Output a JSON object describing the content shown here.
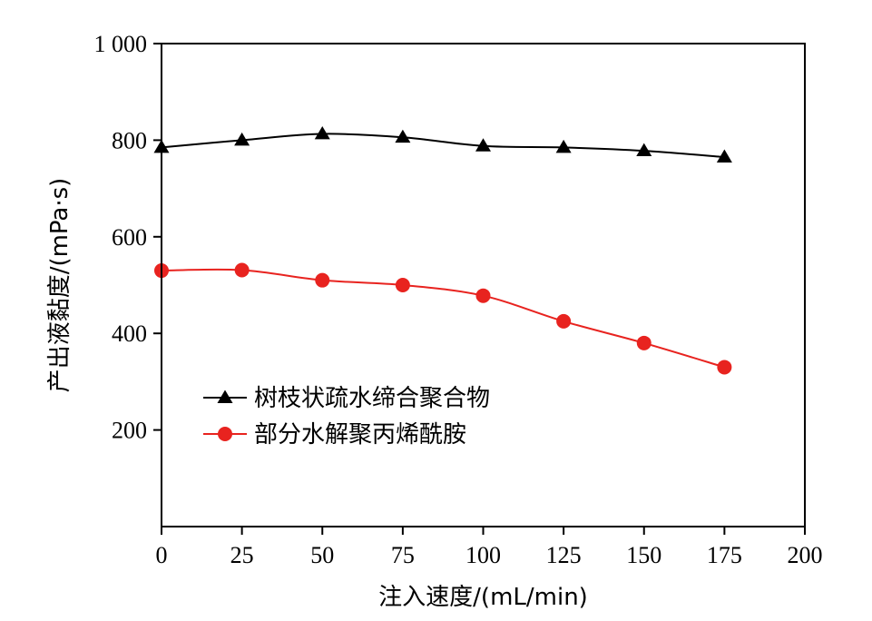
{
  "chart_data": {
    "type": "line",
    "xlabel": "注入速度/(mL/min)",
    "ylabel": "产出液黏度/(mPa·s)",
    "xlim": [
      0,
      200
    ],
    "ylim": [
      0,
      1000
    ],
    "x_ticks": [
      0,
      25,
      50,
      75,
      100,
      125,
      150,
      175,
      200
    ],
    "x_tick_labels": [
      "0",
      "25",
      "50",
      "75",
      "100",
      "125",
      "150",
      "175",
      "200"
    ],
    "y_ticks": [
      200,
      400,
      600,
      800,
      1000
    ],
    "y_tick_labels": [
      "200",
      "400",
      "600",
      "800",
      "1 000"
    ],
    "grid": false,
    "legend_position": "lower-left",
    "series": [
      {
        "name": "树枝状疏水缔合聚合物",
        "color": "#000000",
        "marker": "triangle",
        "x": [
          0,
          25,
          50,
          75,
          100,
          125,
          150,
          175
        ],
        "values": [
          785,
          800,
          813,
          806,
          788,
          785,
          778,
          765
        ]
      },
      {
        "name": "部分水解聚丙烯酰胺",
        "color": "#e8231f",
        "marker": "circle",
        "x": [
          0,
          25,
          50,
          75,
          100,
          125,
          150,
          175
        ],
        "values": [
          530,
          531,
          510,
          500,
          478,
          425,
          380,
          330
        ]
      }
    ]
  }
}
